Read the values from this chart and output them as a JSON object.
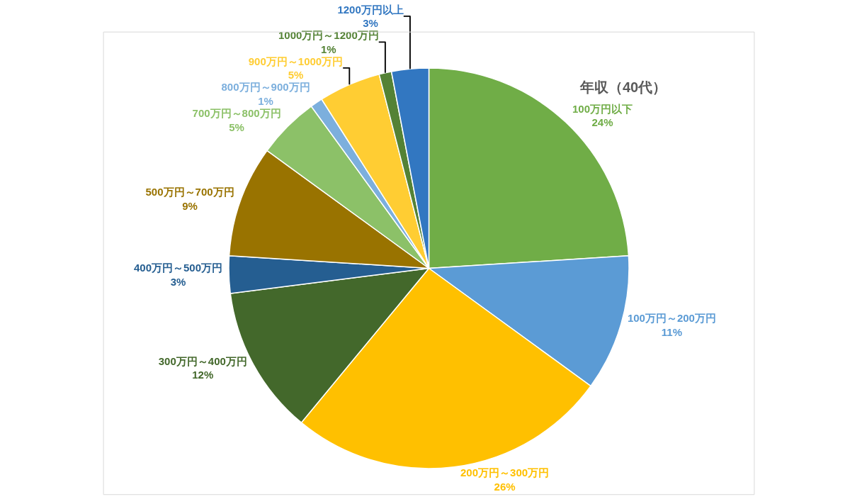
{
  "chart_data": {
    "type": "pie",
    "title": "年収（40代）",
    "categories": [
      "100万円以下",
      "100万円～200万円",
      "200万円～300万円",
      "300万円～400万円",
      "400万円～500万円",
      "500万円～700万円",
      "700万円～800万円",
      "800万円～900万円",
      "900万円～1000万円",
      "1000万円～1200万円",
      "1200万円以上"
    ],
    "values": [
      24,
      11,
      26,
      12,
      3,
      9,
      5,
      1,
      5,
      1,
      3
    ],
    "value_labels": [
      "24%",
      "11%",
      "26%",
      "12%",
      "3%",
      "9%",
      "5%",
      "1%",
      "5%",
      "1%",
      "3%"
    ],
    "colors": [
      "#70ad47",
      "#5b9bd5",
      "#ffc000",
      "#43682b",
      "#255e91",
      "#997300",
      "#8cc168",
      "#7cafdd",
      "#ffcd33",
      "#548235",
      "#3277c1"
    ],
    "legend": false
  }
}
